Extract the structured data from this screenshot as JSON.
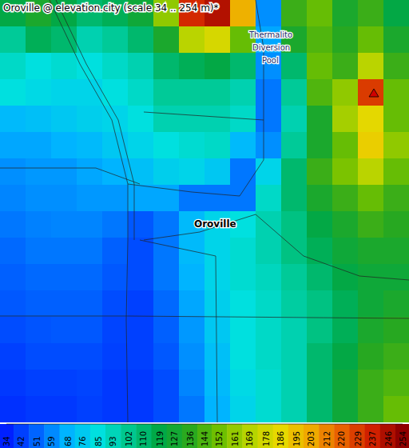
{
  "chart_data": {
    "type": "heatmap",
    "title": "Oroville @ elevation.city (scale 34 .. 254 m)*",
    "labels": [
      "Oroville",
      "Thermalito",
      "Diversion",
      "Pool"
    ],
    "cells": [
      [
        120,
        130,
        120,
        110,
        115,
        125,
        160,
        235,
        245,
        200,
        60,
        140,
        150,
        130,
        140,
        120
      ],
      [
        100,
        115,
        110,
        95,
        100,
        110,
        130,
        170,
        180,
        150,
        65,
        130,
        145,
        135,
        150,
        130
      ],
      [
        90,
        85,
        88,
        85,
        90,
        95,
        110,
        115,
        120,
        110,
        60,
        110,
        150,
        140,
        170,
        140
      ],
      [
        85,
        82,
        80,
        80,
        85,
        90,
        100,
        100,
        100,
        95,
        55,
        100,
        145,
        160,
        230,
        150
      ],
      [
        70,
        72,
        75,
        78,
        80,
        85,
        95,
        95,
        95,
        90,
        55,
        95,
        130,
        165,
        185,
        150
      ],
      [
        65,
        65,
        68,
        70,
        75,
        80,
        85,
        88,
        90,
        70,
        60,
        100,
        130,
        150,
        190,
        160
      ],
      [
        60,
        62,
        62,
        65,
        68,
        72,
        78,
        80,
        75,
        55,
        80,
        110,
        140,
        155,
        170,
        150
      ],
      [
        58,
        60,
        60,
        62,
        62,
        65,
        65,
        55,
        55,
        55,
        90,
        110,
        130,
        140,
        150,
        140
      ],
      [
        55,
        57,
        58,
        58,
        55,
        48,
        55,
        70,
        80,
        85,
        95,
        105,
        120,
        130,
        140,
        135
      ],
      [
        52,
        55,
        55,
        55,
        50,
        45,
        55,
        70,
        80,
        88,
        95,
        105,
        115,
        125,
        130,
        130
      ],
      [
        50,
        52,
        52,
        52,
        48,
        45,
        55,
        68,
        80,
        88,
        92,
        100,
        110,
        120,
        125,
        125
      ],
      [
        48,
        50,
        50,
        50,
        45,
        42,
        52,
        65,
        78,
        85,
        90,
        98,
        105,
        115,
        125,
        130
      ],
      [
        45,
        47,
        48,
        48,
        43,
        42,
        50,
        62,
        75,
        85,
        90,
        95,
        105,
        115,
        130,
        135
      ],
      [
        42,
        45,
        45,
        45,
        42,
        42,
        48,
        60,
        72,
        85,
        90,
        95,
        110,
        120,
        135,
        140
      ],
      [
        40,
        42,
        42,
        43,
        40,
        40,
        45,
        58,
        70,
        82,
        88,
        95,
        110,
        125,
        140,
        145
      ],
      [
        38,
        40,
        40,
        42,
        40,
        40,
        45,
        55,
        68,
        80,
        88,
        95,
        110,
        125,
        140,
        150
      ]
    ],
    "colorbar": {
      "range": [
        34,
        254
      ],
      "ticks": [
        34,
        42,
        51,
        59,
        68,
        76,
        85,
        93,
        102,
        110,
        119,
        127,
        136,
        144,
        152,
        161,
        169,
        178,
        186,
        195,
        203,
        212,
        220,
        229,
        237,
        246,
        254
      ]
    }
  }
}
